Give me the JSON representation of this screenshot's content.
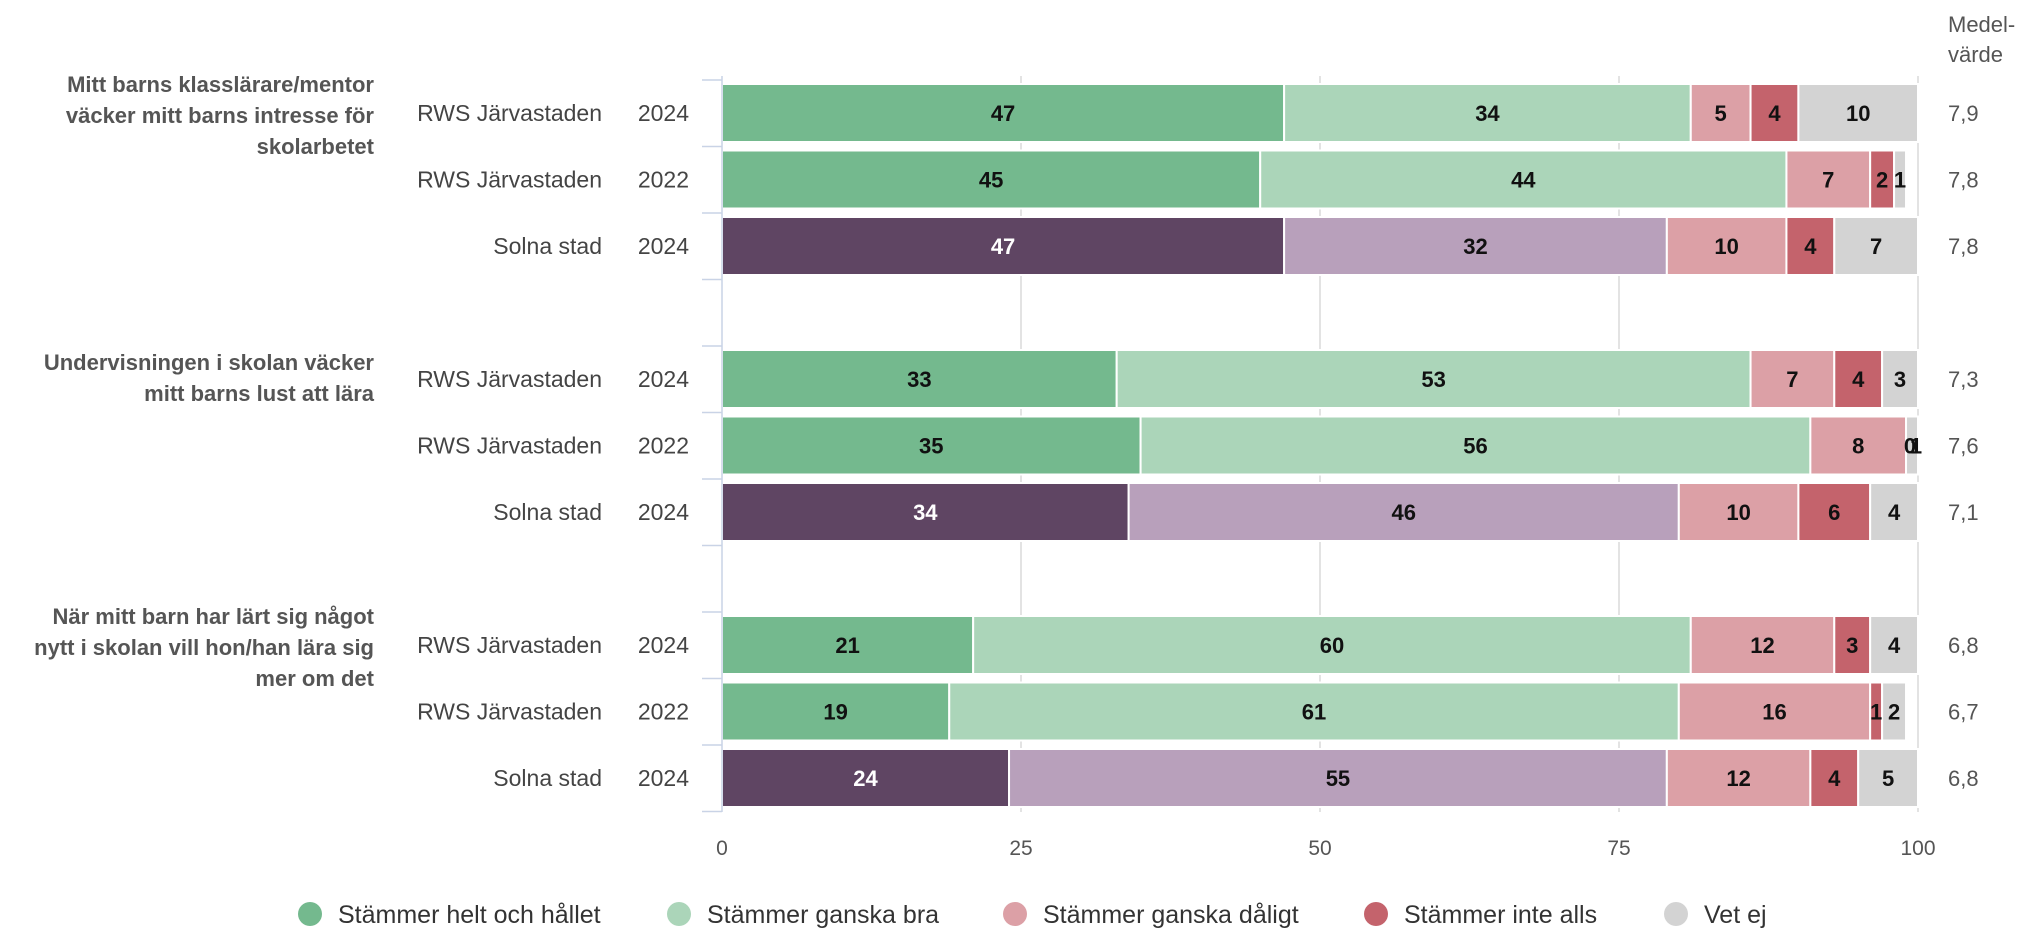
{
  "chart_data": {
    "type": "bar",
    "orientation": "horizontal",
    "stacked": true,
    "mean_header": [
      "Medel-",
      "värde"
    ],
    "legend_position": "bottom",
    "xlim": [
      0,
      100
    ],
    "xticks": [
      "0",
      "25",
      "50",
      "75",
      "100"
    ],
    "grid": true,
    "series": [
      {
        "name": "Stämmer helt och hållet",
        "color": "#74b98e",
        "alt_color": "#5f4563"
      },
      {
        "name": "Stämmer ganska bra",
        "color": "#abd5b9",
        "alt_color": "#b8a0bb"
      },
      {
        "name": "Stämmer ganska dåligt",
        "color": "#dca0a6"
      },
      {
        "name": "Stämmer inte alls",
        "color": "#c4636c"
      },
      {
        "name": "Vet ej",
        "color": "#d3d3d3"
      }
    ],
    "questions": [
      {
        "text": [
          "Mitt barns klasslärare/mentor",
          "väcker mitt barns intresse för",
          "skolarbetet"
        ],
        "rows": [
          {
            "group": "RWS Järvastaden",
            "year": "2024",
            "values": [
              47,
              34,
              5,
              4,
              10
            ],
            "mean": "7,9",
            "alt": false
          },
          {
            "group": "RWS Järvastaden",
            "year": "2022",
            "values": [
              45,
              44,
              7,
              2,
              1
            ],
            "mean": "7,8",
            "alt": false
          },
          {
            "group": "Solna stad",
            "year": "2024",
            "values": [
              47,
              32,
              10,
              4,
              7
            ],
            "mean": "7,8",
            "alt": true
          }
        ]
      },
      {
        "text": [
          "Undervisningen i skolan väcker",
          "mitt barns lust att lära"
        ],
        "rows": [
          {
            "group": "RWS Järvastaden",
            "year": "2024",
            "values": [
              33,
              53,
              7,
              4,
              3
            ],
            "mean": "7,3",
            "alt": false
          },
          {
            "group": "RWS Järvastaden",
            "year": "2022",
            "values": [
              35,
              56,
              8,
              0,
              1
            ],
            "mean": "7,6",
            "alt": false
          },
          {
            "group": "Solna stad",
            "year": "2024",
            "values": [
              34,
              46,
              10,
              6,
              4
            ],
            "mean": "7,1",
            "alt": true
          }
        ]
      },
      {
        "text": [
          "När mitt barn har lärt sig något",
          "nytt i skolan vill hon/han lära sig",
          "mer om det"
        ],
        "rows": [
          {
            "group": "RWS Järvastaden",
            "year": "2024",
            "values": [
              21,
              60,
              12,
              3,
              4
            ],
            "mean": "6,8",
            "alt": false
          },
          {
            "group": "RWS Järvastaden",
            "year": "2022",
            "values": [
              19,
              61,
              16,
              1,
              2
            ],
            "mean": "6,7",
            "alt": false
          },
          {
            "group": "Solna stad",
            "year": "2024",
            "values": [
              24,
              55,
              12,
              4,
              5
            ],
            "mean": "6,8",
            "alt": true
          }
        ]
      }
    ]
  }
}
